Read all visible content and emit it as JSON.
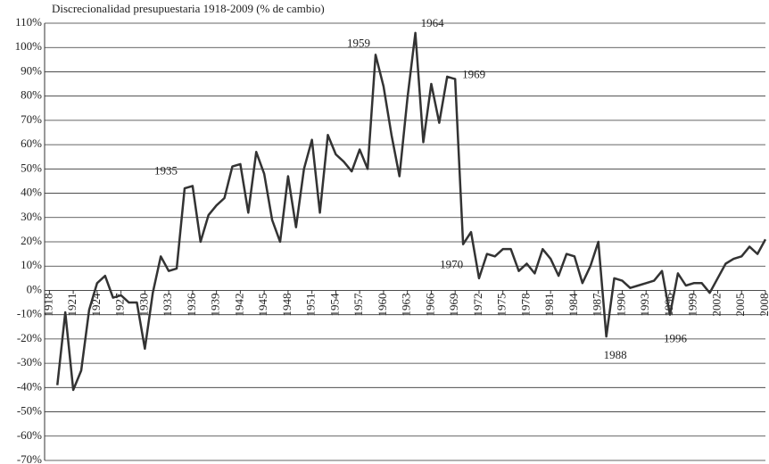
{
  "chart_data": {
    "type": "line",
    "title": "Discrecionalidad presupuestaria 1918-2009 (% de cambio)",
    "x": [
      1919,
      1920,
      1921,
      1922,
      1923,
      1924,
      1925,
      1926,
      1927,
      1928,
      1929,
      1930,
      1931,
      1932,
      1933,
      1934,
      1935,
      1936,
      1937,
      1938,
      1939,
      1940,
      1941,
      1942,
      1943,
      1944,
      1945,
      1946,
      1947,
      1948,
      1949,
      1950,
      1951,
      1952,
      1953,
      1954,
      1955,
      1956,
      1957,
      1958,
      1959,
      1960,
      1961,
      1962,
      1963,
      1964,
      1965,
      1966,
      1967,
      1968,
      1969,
      1970,
      1971,
      1972,
      1973,
      1974,
      1975,
      1976,
      1977,
      1978,
      1979,
      1980,
      1981,
      1982,
      1983,
      1984,
      1985,
      1986,
      1987,
      1988,
      1989,
      1990,
      1991,
      1992,
      1993,
      1994,
      1995,
      1996,
      1997,
      1998,
      1999,
      2000,
      2001,
      2002,
      2003,
      2004,
      2005,
      2006,
      2007,
      2008
    ],
    "series": [
      {
        "name": "Discrecionalidad",
        "color": "#333333",
        "values": [
          -39,
          -9,
          -41,
          -33,
          -8,
          3,
          6,
          -3,
          -2,
          -5,
          -5,
          -24,
          -1,
          14,
          8,
          9,
          42,
          43,
          20,
          31,
          35,
          38,
          51,
          52,
          32,
          57,
          48,
          29,
          20,
          47,
          26,
          50,
          62,
          32,
          64,
          56,
          53,
          49,
          58,
          50,
          97,
          84,
          64,
          47,
          79,
          106,
          61,
          85,
          69,
          88,
          87,
          19,
          24,
          5,
          15,
          14,
          17,
          17,
          8,
          11,
          7,
          17,
          13,
          6,
          15,
          14,
          3,
          10,
          20,
          -19,
          5,
          4,
          1,
          2,
          3,
          4,
          8,
          -10,
          7,
          2,
          3,
          3,
          -1,
          5,
          11,
          13,
          14,
          18,
          15,
          21
        ]
      }
    ],
    "xlim": [
      1917.4,
      2008
    ],
    "xticks": [
      1918,
      1921,
      1924,
      1927,
      1930,
      1933,
      1936,
      1939,
      1942,
      1945,
      1948,
      1951,
      1954,
      1957,
      1960,
      1963,
      1966,
      1969,
      1972,
      1975,
      1978,
      1981,
      1984,
      1987,
      1990,
      1993,
      1996,
      1999,
      2002,
      2005,
      2008
    ],
    "ylim": [
      -70,
      110
    ],
    "yticks": [
      {
        "value": -70,
        "label": "-70%"
      },
      {
        "value": -60,
        "label": "-60%"
      },
      {
        "value": -50,
        "label": "-50%"
      },
      {
        "value": -40,
        "label": "-40%"
      },
      {
        "value": -30,
        "label": "-30%"
      },
      {
        "value": -20,
        "label": "-20%"
      },
      {
        "value": -10,
        "label": "-10%"
      },
      {
        "value": 0,
        "label": "0%"
      },
      {
        "value": 10,
        "label": "10%"
      },
      {
        "value": 20,
        "label": "20%"
      },
      {
        "value": 30,
        "label": "30%"
      },
      {
        "value": 40,
        "label": "40%"
      },
      {
        "value": 50,
        "label": "50%"
      },
      {
        "value": 60,
        "label": "60%"
      },
      {
        "value": 70,
        "label": "70%"
      },
      {
        "value": 80,
        "label": "80%"
      },
      {
        "value": 90,
        "label": "90%"
      },
      {
        "value": 100,
        "label": "100%"
      },
      {
        "value": 110,
        "label": "110%"
      }
    ],
    "grid": true,
    "annotations": [
      {
        "label": "1935",
        "x": 1935,
        "y": 43
      },
      {
        "label": "1959",
        "x": 1959,
        "y": 97
      },
      {
        "label": "1964",
        "x": 1964,
        "y": 106
      },
      {
        "label": "1969",
        "x": 1969,
        "y": 87
      },
      {
        "label": "1970",
        "x": 1970,
        "y": 19
      },
      {
        "label": "1988",
        "x": 1988,
        "y": -19
      },
      {
        "label": "1996",
        "x": 1996,
        "y": -10
      }
    ]
  }
}
